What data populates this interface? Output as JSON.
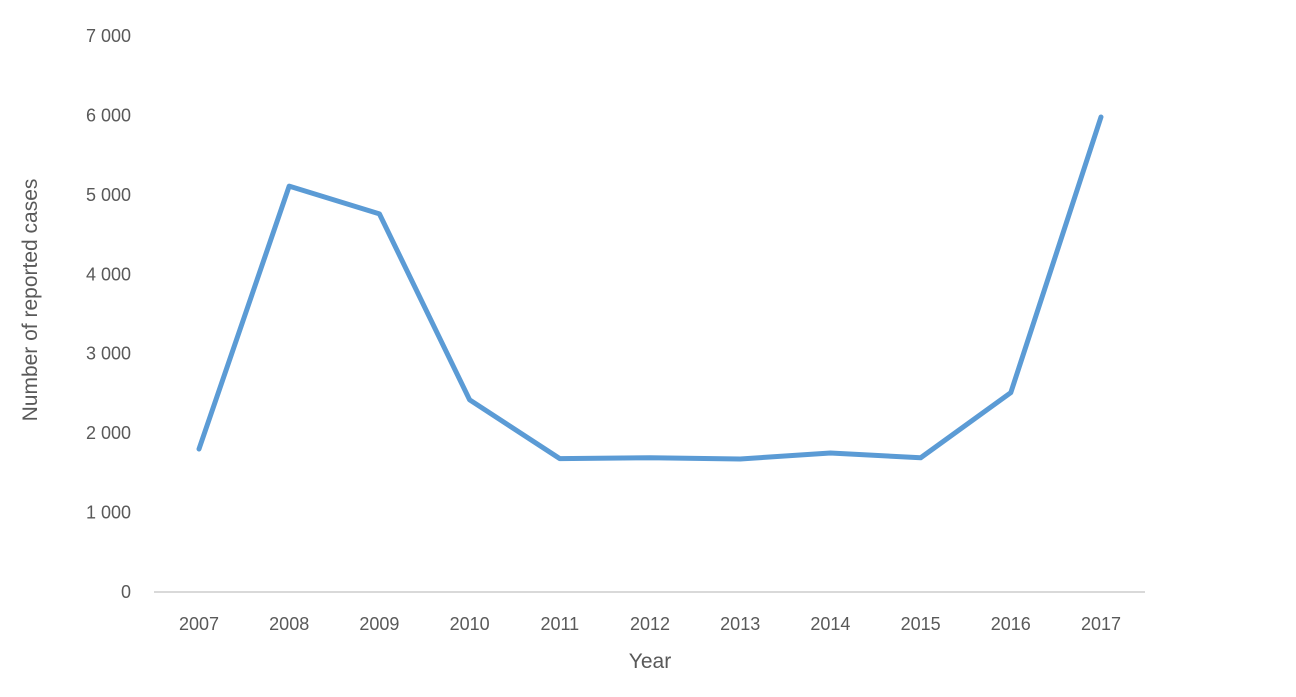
{
  "chart_data": {
    "type": "line",
    "title": "",
    "xlabel": "Year",
    "ylabel": "Number of reported cases",
    "categories": [
      "2007",
      "2008",
      "2009",
      "2010",
      "2011",
      "2012",
      "2013",
      "2014",
      "2015",
      "2016",
      "2017"
    ],
    "series": [
      {
        "name": "Reported cases",
        "color": "#5b9bd5",
        "values": [
          1800,
          5110,
          4760,
          2420,
          1680,
          1690,
          1675,
          1750,
          1690,
          2510,
          5980
        ]
      }
    ],
    "yticks": [
      0,
      1000,
      2000,
      3000,
      4000,
      5000,
      6000,
      7000
    ],
    "ytick_labels": [
      "0",
      "1 000",
      "2 000",
      "3 000",
      "4 000",
      "5 000",
      "6 000",
      "7 000"
    ],
    "ylim": [
      0,
      7000
    ],
    "grid": false,
    "legend": "none",
    "axis_color": "#d9d9d9",
    "text_color": "#595959"
  }
}
